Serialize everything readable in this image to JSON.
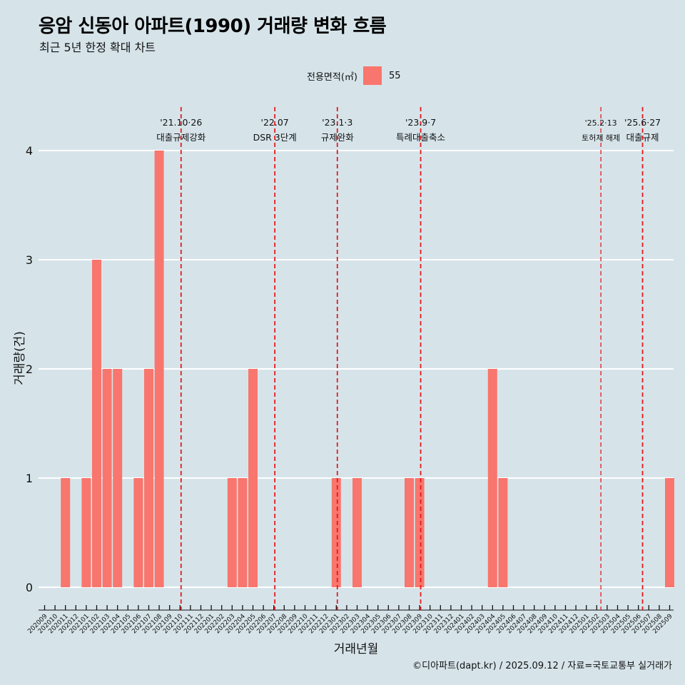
{
  "header": {
    "title": "응암 신동아 아파트(1990) 거래량 변화 흐름",
    "subtitle": "최근 5년 한정 확대 차트"
  },
  "legend": {
    "title": "전용면적(㎡)",
    "item": "55",
    "color": "#f8766d"
  },
  "caption": "©디아파트(dapt.kr) / 2025.09.12 / 자료=국토교통부 실거래가",
  "chart_data": {
    "type": "bar",
    "title": "응암 신동아 아파트(1990) 거래량 변화 흐름",
    "xlabel": "거래년월",
    "ylabel": "거래량(건)",
    "ylim": [
      0,
      4
    ],
    "yticks": [
      "0",
      "1",
      "2",
      "3",
      "4"
    ],
    "categories": [
      "202009",
      "202010",
      "202011",
      "202012",
      "202101",
      "202102",
      "202103",
      "202104",
      "202105",
      "202106",
      "202107",
      "202108",
      "202109",
      "202110",
      "202111",
      "202112",
      "202201",
      "202202",
      "202203",
      "202204",
      "202205",
      "202206",
      "202207",
      "202208",
      "202209",
      "202210",
      "202211",
      "202212",
      "202301",
      "202302",
      "202303",
      "202304",
      "202305",
      "202306",
      "202307",
      "202308",
      "202309",
      "202310",
      "202311",
      "202312",
      "202401",
      "202402",
      "202403",
      "202404",
      "202405",
      "202406",
      "202407",
      "202408",
      "202409",
      "202410",
      "202411",
      "202412",
      "202501",
      "202502",
      "202503",
      "202504",
      "202505",
      "202506",
      "202507",
      "202508",
      "202509"
    ],
    "series": [
      {
        "name": "55",
        "values": [
          0,
          0,
          1,
          0,
          1,
          3,
          2,
          2,
          0,
          1,
          2,
          4,
          0,
          0,
          0,
          0,
          0,
          0,
          1,
          1,
          2,
          0,
          0,
          0,
          0,
          0,
          0,
          0,
          1,
          0,
          1,
          0,
          0,
          0,
          0,
          1,
          1,
          0,
          0,
          0,
          0,
          0,
          0,
          2,
          1,
          0,
          0,
          0,
          0,
          0,
          0,
          0,
          0,
          0,
          0,
          0,
          0,
          0,
          0,
          0,
          1
        ]
      }
    ],
    "annotations": [
      {
        "index": 13.1,
        "date": "'21.10·26",
        "label": "대출규제강화",
        "small": false
      },
      {
        "index": 22.1,
        "date": "'22.07",
        "label": "DSR 3단계",
        "small": false
      },
      {
        "index": 28.1,
        "date": "'23.1·3",
        "label": "규제완화",
        "small": false
      },
      {
        "index": 36.1,
        "date": "'23.9·7",
        "label": "특례대출축소",
        "small": false
      },
      {
        "index": 53.4,
        "date": "'25.2·13",
        "label": "토허제 해제",
        "small": true
      },
      {
        "index": 57.4,
        "date": "'25.6·27",
        "label": "대출규제",
        "small": false
      }
    ]
  }
}
